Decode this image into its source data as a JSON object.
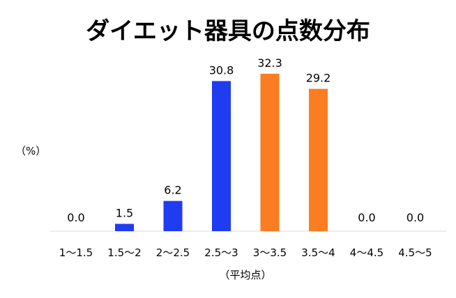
{
  "chart_data": {
    "type": "bar",
    "title": "ダイエット器具の点数分布",
    "ylabel": "（%）",
    "xlabel": "（平均点）",
    "categories": [
      "1〜1.5",
      "1.5〜2",
      "2〜2.5",
      "2.5〜3",
      "3〜3.5",
      "3.5〜4",
      "4〜4.5",
      "4.5〜5"
    ],
    "values": [
      0.0,
      1.5,
      6.2,
      30.8,
      32.3,
      29.2,
      0.0,
      0.0
    ],
    "value_labels": [
      "0.0",
      "1.5",
      "6.2",
      "30.8",
      "32.3",
      "29.2",
      "0.0",
      "0.0"
    ],
    "bar_colors": [
      "#1f3cf0",
      "#1f3cf0",
      "#1f3cf0",
      "#1f3cf0",
      "#fb7d22",
      "#fb7d22",
      "#1f3cf0",
      "#1f3cf0"
    ],
    "ylim": [
      0,
      34
    ],
    "grid": false,
    "legend": "none"
  }
}
